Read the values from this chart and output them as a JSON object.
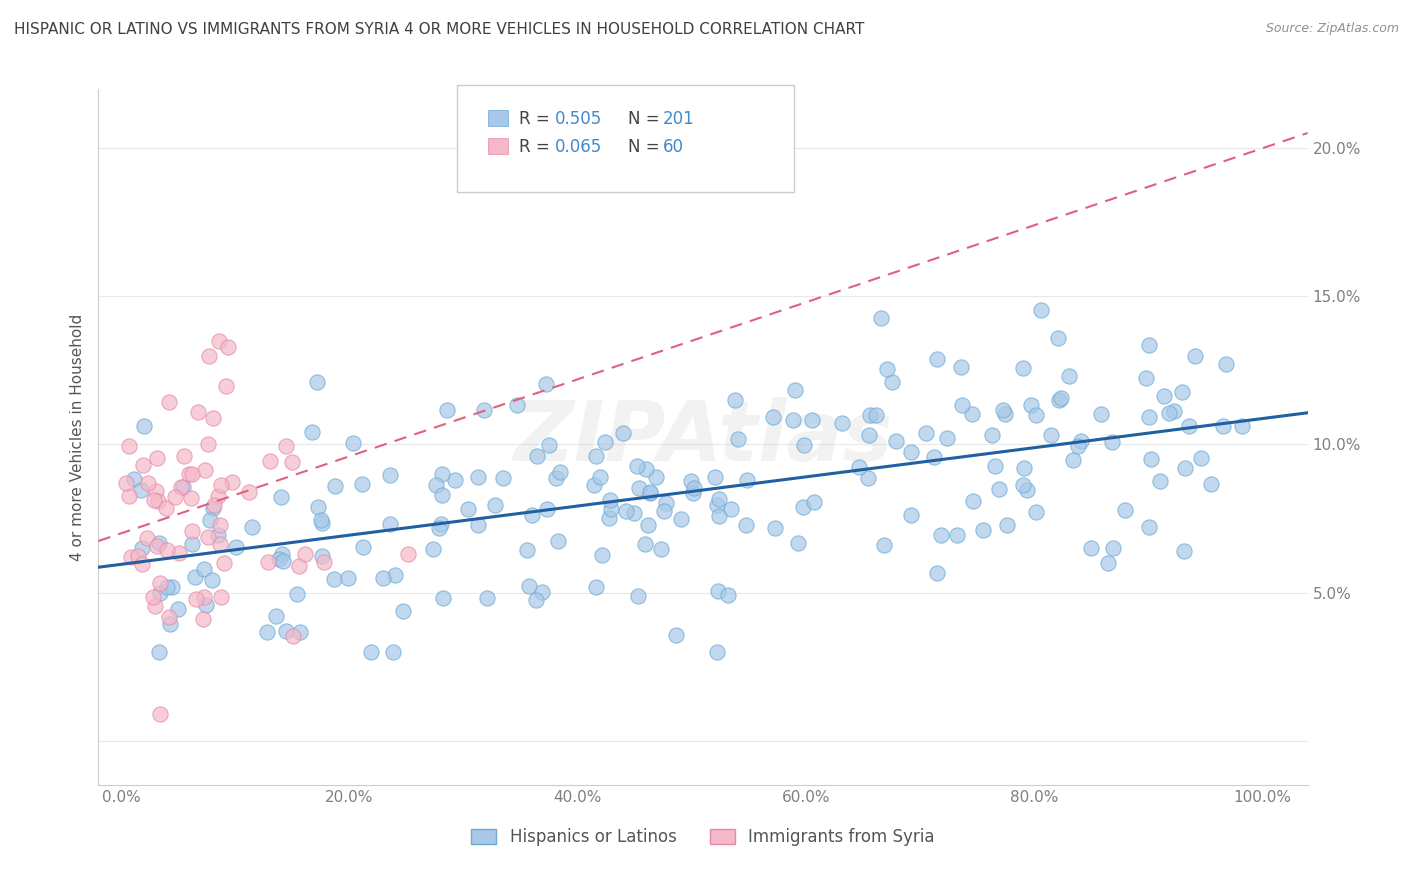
{
  "title": "HISPANIC OR LATINO VS IMMIGRANTS FROM SYRIA 4 OR MORE VEHICLES IN HOUSEHOLD CORRELATION CHART",
  "source": "Source: ZipAtlas.com",
  "ylabel": "4 or more Vehicles in Household",
  "watermark": "ZIPAtlas",
  "legend1_label": "Hispanics or Latinos",
  "legend2_label": "Immigrants from Syria",
  "R1": 0.505,
  "N1": 201,
  "R2": 0.065,
  "N2": 60,
  "blue_dot_color": "#a8c8e8",
  "blue_dot_edge": "#6aaad4",
  "pink_dot_color": "#f5b8c8",
  "pink_dot_edge": "#e888a8",
  "blue_line_color": "#2060a0",
  "pink_line_color": "#e06080",
  "xlim": [
    -2,
    104
  ],
  "ylim": [
    -1.5,
    22
  ],
  "xticks": [
    0,
    20,
    40,
    60,
    80,
    100
  ],
  "yticks": [
    0,
    5,
    10,
    15,
    20
  ],
  "xticklabels": [
    "0.0%",
    "20.0%",
    "40.0%",
    "60.0%",
    "80.0%",
    "100.0%"
  ],
  "yticklabels": [
    "",
    "5.0%",
    "10.0%",
    "15.0%",
    "20.0%"
  ],
  "background_color": "#ffffff",
  "grid_color": "#e8e8e8",
  "title_color": "#404040",
  "source_color": "#909090",
  "tick_color": "#808080",
  "legend_R_color": "#4488cc",
  "legend_N_color": "#4488cc"
}
